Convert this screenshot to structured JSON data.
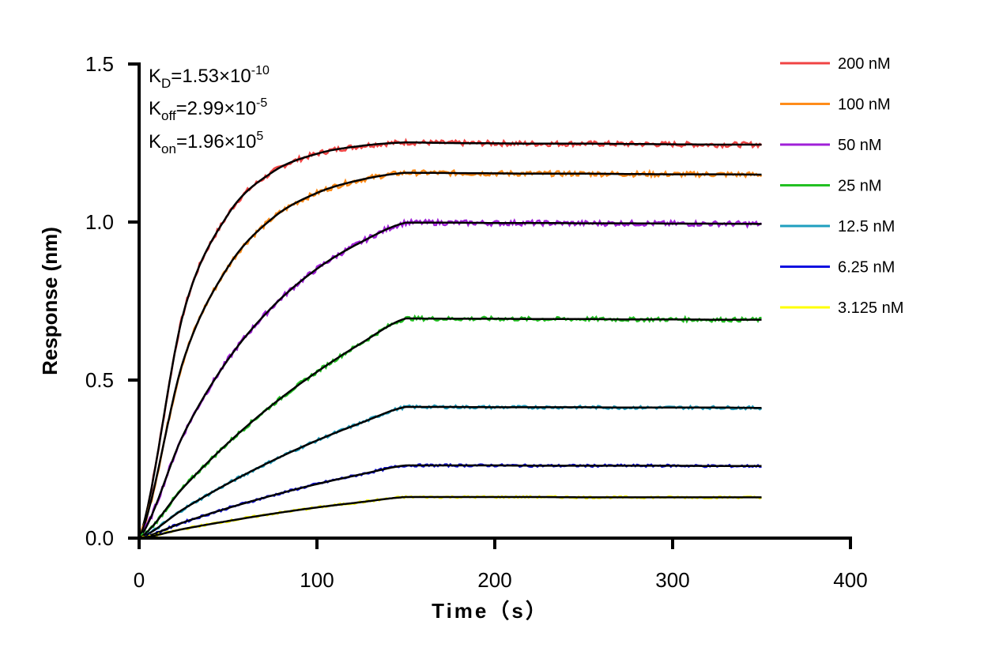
{
  "chart_data": {
    "type": "line",
    "xlabel": "Time（s）",
    "ylabel": "Response (nm)",
    "xlim": [
      0,
      400
    ],
    "ylim": [
      0,
      1.5
    ],
    "xticks": [
      "0",
      "100",
      "200",
      "300",
      "400"
    ],
    "yticks": [
      "0.0",
      "0.5",
      "1.0",
      "1.5"
    ],
    "grid": false,
    "legend_position": "right",
    "annotations": {
      "kd": {
        "base": "K",
        "sub": "D",
        "value": "=1.53×10",
        "exp": "-10"
      },
      "koff": {
        "base": "K",
        "sub": "off",
        "value": "=2.99×10",
        "exp": "-5"
      },
      "kon": {
        "base": "K",
        "sub": "on",
        "value": "=1.96×10",
        "exp": "5"
      }
    },
    "fit_color": "#000000",
    "x": [
      0,
      25,
      50,
      75,
      100,
      125,
      150,
      175,
      200,
      225,
      250,
      275,
      300,
      325,
      350
    ],
    "series": [
      {
        "name": "200 nM",
        "color": "#f04444",
        "values": [
          0,
          0.714,
          1.024,
          1.158,
          1.216,
          1.241,
          1.252,
          1.25,
          1.249,
          1.248,
          1.248,
          1.247,
          1.246,
          1.245,
          1.245
        ]
      },
      {
        "name": "100 nM",
        "color": "#ff8c1a",
        "values": [
          0,
          0.564,
          0.858,
          1.012,
          1.092,
          1.134,
          1.156,
          1.155,
          1.154,
          1.153,
          1.153,
          1.152,
          1.151,
          1.151,
          1.15
        ]
      },
      {
        "name": "50 nM",
        "color": "#a020d8",
        "values": [
          0,
          0.329,
          0.565,
          0.732,
          0.852,
          0.937,
          0.998,
          0.998,
          0.997,
          0.997,
          0.996,
          0.996,
          0.995,
          0.995,
          0.994
        ]
      },
      {
        "name": "25 nM",
        "color": "#22c022",
        "values": [
          0,
          0.161,
          0.301,
          0.422,
          0.526,
          0.617,
          0.695,
          0.694,
          0.694,
          0.693,
          0.693,
          0.692,
          0.692,
          0.691,
          0.691
        ]
      },
      {
        "name": "12.5 nM",
        "color": "#1f9fbf",
        "values": [
          0,
          0.092,
          0.173,
          0.245,
          0.309,
          0.365,
          0.415,
          0.415,
          0.414,
          0.414,
          0.414,
          0.413,
          0.413,
          0.413,
          0.412
        ]
      },
      {
        "name": "6.25 nM",
        "color": "#1010e0",
        "values": [
          0,
          0.05,
          0.095,
          0.135,
          0.171,
          0.202,
          0.23,
          0.23,
          0.23,
          0.229,
          0.229,
          0.229,
          0.229,
          0.228,
          0.228
        ]
      },
      {
        "name": "3.125 nM",
        "color": "#ffff00",
        "values": [
          0,
          0.029,
          0.054,
          0.077,
          0.097,
          0.114,
          0.13,
          0.13,
          0.13,
          0.13,
          0.129,
          0.129,
          0.129,
          0.129,
          0.129
        ]
      }
    ]
  }
}
